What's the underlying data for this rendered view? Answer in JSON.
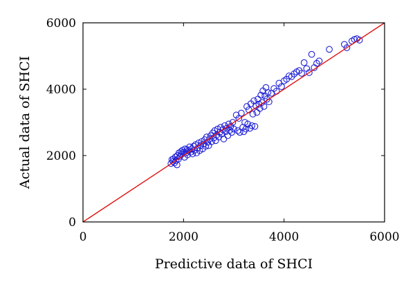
{
  "chart_data": {
    "type": "scatter",
    "title": "",
    "xlabel": "Predictive data of SHCI",
    "ylabel": "Actual data of SHCI",
    "xlim": [
      0,
      6000
    ],
    "ylim": [
      0,
      6000
    ],
    "xticks": [
      "0",
      "2000",
      "4000",
      "6000"
    ],
    "yticks": [
      "0",
      "2000",
      "4000",
      "6000"
    ],
    "grid": false,
    "legend": "none",
    "marker": "open circle",
    "reference_line": {
      "label": "",
      "from": [
        0,
        0
      ],
      "to": [
        6000,
        6000
      ]
    },
    "colors": {
      "points": "#1f1fd6",
      "reference_line": "#e01010",
      "axes": "#000000"
    },
    "series": [
      {
        "values": [
          [
            1750,
            1760
          ],
          [
            1770,
            1880
          ],
          [
            1790,
            1820
          ],
          [
            1800,
            1900
          ],
          [
            1820,
            1780
          ],
          [
            1840,
            1960
          ],
          [
            1850,
            1850
          ],
          [
            1870,
            1720
          ],
          [
            1880,
            2000
          ],
          [
            1900,
            1900
          ],
          [
            1910,
            2080
          ],
          [
            1930,
            1980
          ],
          [
            1950,
            2120
          ],
          [
            1960,
            2040
          ],
          [
            1980,
            2160
          ],
          [
            2000,
            2100
          ],
          [
            2020,
            1950
          ],
          [
            2030,
            2200
          ],
          [
            2050,
            2080
          ],
          [
            2070,
            2180
          ],
          [
            2080,
            2020
          ],
          [
            2100,
            2140
          ],
          [
            2120,
            2260
          ],
          [
            2140,
            2100
          ],
          [
            2160,
            2200
          ],
          [
            2180,
            2050
          ],
          [
            2200,
            2280
          ],
          [
            2220,
            2160
          ],
          [
            2240,
            2330
          ],
          [
            2260,
            2080
          ],
          [
            2280,
            2220
          ],
          [
            2300,
            2380
          ],
          [
            2320,
            2150
          ],
          [
            2340,
            2300
          ],
          [
            2360,
            2420
          ],
          [
            2380,
            2200
          ],
          [
            2400,
            2350
          ],
          [
            2420,
            2480
          ],
          [
            2440,
            2280
          ],
          [
            2460,
            2560
          ],
          [
            2480,
            2400
          ],
          [
            2500,
            2300
          ],
          [
            2520,
            2500
          ],
          [
            2540,
            2600
          ],
          [
            2560,
            2420
          ],
          [
            2580,
            2680
          ],
          [
            2600,
            2530
          ],
          [
            2620,
            2750
          ],
          [
            2640,
            2450
          ],
          [
            2660,
            2620
          ],
          [
            2680,
            2800
          ],
          [
            2700,
            2560
          ],
          [
            2720,
            2700
          ],
          [
            2740,
            2850
          ],
          [
            2760,
            2650
          ],
          [
            2780,
            2780
          ],
          [
            2800,
            2500
          ],
          [
            2820,
            2900
          ],
          [
            2840,
            2720
          ],
          [
            2860,
            2820
          ],
          [
            2880,
            2600
          ],
          [
            2900,
            2950
          ],
          [
            2920,
            2760
          ],
          [
            2940,
            2880
          ],
          [
            2960,
            2700
          ],
          [
            2980,
            3000
          ],
          [
            3000,
            2800
          ],
          [
            3050,
            3220
          ],
          [
            3080,
            2750
          ],
          [
            3100,
            3120
          ],
          [
            3120,
            2700
          ],
          [
            3150,
            3280
          ],
          [
            3180,
            2850
          ],
          [
            3200,
            2720
          ],
          [
            3220,
            3000
          ],
          [
            3240,
            2800
          ],
          [
            3260,
            3480
          ],
          [
            3280,
            2950
          ],
          [
            3300,
            3380
          ],
          [
            3320,
            2820
          ],
          [
            3340,
            3560
          ],
          [
            3360,
            2900
          ],
          [
            3380,
            3250
          ],
          [
            3400,
            3650
          ],
          [
            3420,
            2880
          ],
          [
            3440,
            3500
          ],
          [
            3460,
            3300
          ],
          [
            3480,
            3700
          ],
          [
            3500,
            3550
          ],
          [
            3520,
            3420
          ],
          [
            3540,
            3820
          ],
          [
            3560,
            3600
          ],
          [
            3580,
            3950
          ],
          [
            3600,
            3480
          ],
          [
            3620,
            3800
          ],
          [
            3640,
            4050
          ],
          [
            3660,
            3700
          ],
          [
            3680,
            3900
          ],
          [
            3700,
            3620
          ],
          [
            3750,
            3880
          ],
          [
            3800,
            4020
          ],
          [
            3850,
            3940
          ],
          [
            3900,
            4180
          ],
          [
            3950,
            4080
          ],
          [
            4000,
            4250
          ],
          [
            4050,
            4300
          ],
          [
            4100,
            4400
          ],
          [
            4150,
            4380
          ],
          [
            4200,
            4460
          ],
          [
            4250,
            4520
          ],
          [
            4300,
            4560
          ],
          [
            4350,
            4480
          ],
          [
            4400,
            4800
          ],
          [
            4450,
            4620
          ],
          [
            4500,
            4500
          ],
          [
            4550,
            5050
          ],
          [
            4600,
            4650
          ],
          [
            4650,
            4780
          ],
          [
            4700,
            4850
          ],
          [
            4900,
            5200
          ],
          [
            5200,
            5350
          ],
          [
            5250,
            5250
          ],
          [
            5350,
            5450
          ],
          [
            5400,
            5500
          ],
          [
            5450,
            5520
          ],
          [
            5500,
            5480
          ]
        ]
      }
    ]
  }
}
